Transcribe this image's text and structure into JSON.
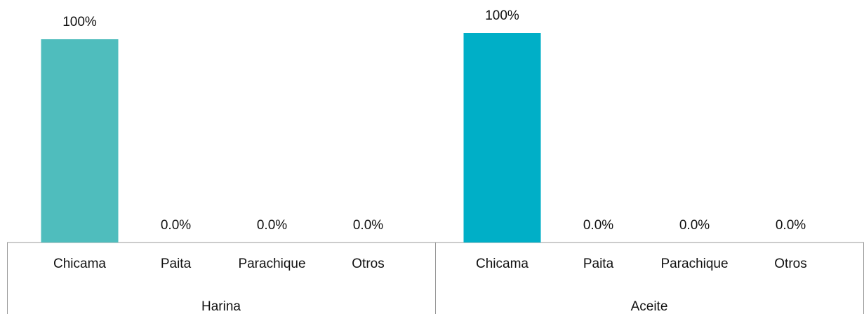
{
  "chart_data": [
    {
      "type": "bar",
      "group": "Harina",
      "categories": [
        "Chicama",
        "Paita",
        "Parachique",
        "Otros"
      ],
      "values": [
        100,
        0,
        0,
        0
      ],
      "value_labels": [
        "100%",
        "0.0%",
        "0.0%",
        "0.0%"
      ],
      "color": "#4fbdbd",
      "ylim": [
        0,
        100
      ]
    },
    {
      "type": "bar",
      "group": "Aceite",
      "categories": [
        "Chicama",
        "Paita",
        "Parachique",
        "Otros"
      ],
      "values": [
        100,
        0,
        0,
        0
      ],
      "value_labels": [
        "100%",
        "0.0%",
        "0.0%",
        "0.0%"
      ],
      "color": "#00afc7",
      "ylim": [
        0,
        100
      ]
    }
  ]
}
